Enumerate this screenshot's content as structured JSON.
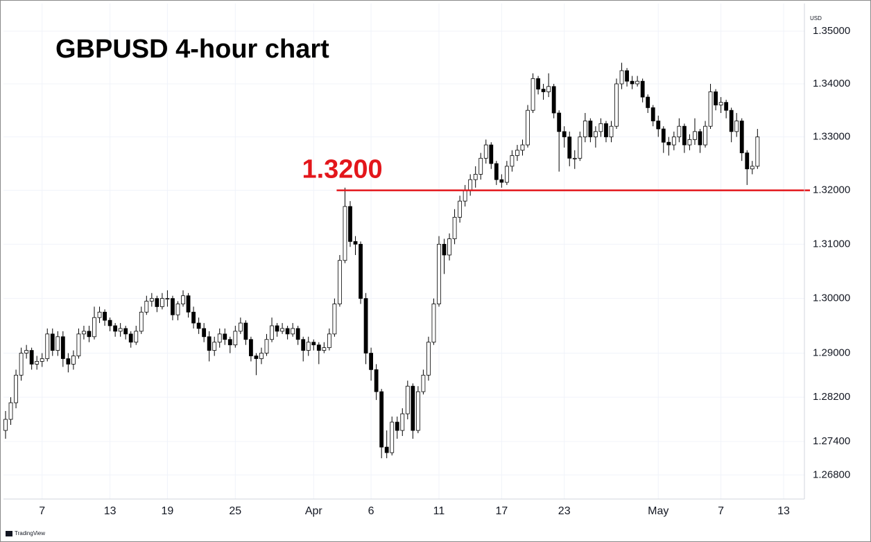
{
  "chart_data": {
    "type": "candlestick",
    "title": "GBPUSD 4-hour chart",
    "currency": "USD",
    "footer": "TradingView",
    "log_scale": true,
    "grid": true,
    "up_color": "#ffffff",
    "down_color": "#000000",
    "wick_color": "#000000",
    "ylim": [
      1.2637,
      1.3553
    ],
    "yticks": [
      {
        "value": 1.35,
        "label": "1.35000"
      },
      {
        "value": 1.34,
        "label": "1.34000"
      },
      {
        "value": 1.33,
        "label": "1.33000"
      },
      {
        "value": 1.32,
        "label": "1.32000"
      },
      {
        "value": 1.31,
        "label": "1.31000"
      },
      {
        "value": 1.3,
        "label": "1.30000"
      },
      {
        "value": 1.29,
        "label": "1.29000"
      },
      {
        "value": 1.282,
        "label": "1.28200"
      },
      {
        "value": 1.274,
        "label": "1.27400"
      },
      {
        "value": 1.268,
        "label": "1.26800"
      }
    ],
    "annotations": [
      {
        "text": "1.3200",
        "value": 1.32,
        "color": "#e3161b"
      }
    ],
    "categories": [
      null,
      null,
      null,
      null,
      null,
      null,
      null,
      "7",
      null,
      null,
      null,
      null,
      null,
      null,
      null,
      null,
      null,
      null,
      null,
      null,
      "13",
      null,
      null,
      null,
      null,
      null,
      null,
      null,
      null,
      null,
      null,
      "19",
      null,
      null,
      null,
      null,
      null,
      null,
      null,
      null,
      null,
      null,
      null,
      null,
      "25",
      null,
      null,
      null,
      null,
      null,
      null,
      null,
      null,
      null,
      null,
      null,
      null,
      null,
      null,
      "Apr",
      null,
      null,
      null,
      null,
      null,
      null,
      null,
      null,
      null,
      null,
      "6",
      null,
      null,
      null,
      null,
      null,
      null,
      null,
      null,
      null,
      null,
      null,
      null,
      "11",
      null,
      null,
      null,
      null,
      null,
      null,
      null,
      null,
      null,
      null,
      null,
      "17",
      null,
      null,
      null,
      null,
      null,
      null,
      null,
      null,
      null,
      null,
      null,
      "23",
      null,
      null,
      null,
      null,
      null,
      null,
      null,
      null,
      null,
      null,
      null,
      null,
      null,
      null,
      null,
      null,
      null,
      "May",
      null,
      null,
      null,
      null,
      null,
      null,
      null,
      null,
      null,
      null,
      null,
      "7",
      null,
      null,
      null,
      null,
      null,
      null,
      null,
      null,
      null,
      null,
      null,
      "13"
    ],
    "ohlc": [
      [
        1.276,
        1.2795,
        1.2745,
        1.278
      ],
      [
        1.278,
        1.282,
        1.277,
        1.281
      ],
      [
        1.281,
        1.287,
        1.28,
        1.286
      ],
      [
        1.286,
        1.291,
        1.285,
        1.29
      ],
      [
        1.29,
        1.2915,
        1.289,
        1.2905
      ],
      [
        1.2905,
        1.291,
        1.287,
        1.288
      ],
      [
        1.288,
        1.2895,
        1.287,
        1.2885
      ],
      [
        1.2885,
        1.29,
        1.2875,
        1.289
      ],
      [
        1.289,
        1.2945,
        1.2885,
        1.2935
      ],
      [
        1.2935,
        1.2945,
        1.2895,
        1.2905
      ],
      [
        1.2905,
        1.294,
        1.2895,
        1.293
      ],
      [
        1.293,
        1.294,
        1.2875,
        1.289
      ],
      [
        1.289,
        1.29,
        1.2865,
        1.288
      ],
      [
        1.288,
        1.2905,
        1.287,
        1.2895
      ],
      [
        1.2895,
        1.2945,
        1.289,
        1.2935
      ],
      [
        1.2935,
        1.295,
        1.2925,
        1.294
      ],
      [
        1.294,
        1.295,
        1.292,
        1.293
      ],
      [
        1.293,
        1.2985,
        1.2925,
        1.2965
      ],
      [
        1.2965,
        1.2985,
        1.2955,
        1.2975
      ],
      [
        1.2975,
        1.298,
        1.295,
        1.296
      ],
      [
        1.296,
        1.2965,
        1.294,
        1.295
      ],
      [
        1.295,
        1.2955,
        1.293,
        1.294
      ],
      [
        1.294,
        1.2955,
        1.293,
        1.2945
      ],
      [
        1.2945,
        1.295,
        1.2925,
        1.2935
      ],
      [
        1.2935,
        1.294,
        1.291,
        1.292
      ],
      [
        1.292,
        1.295,
        1.2915,
        1.294
      ],
      [
        1.294,
        1.2985,
        1.2935,
        1.2975
      ],
      [
        1.2975,
        1.3005,
        1.297,
        1.2995
      ],
      [
        1.2995,
        1.301,
        1.2985,
        1.3
      ],
      [
        1.3,
        1.3005,
        1.2975,
        1.2985
      ],
      [
        1.2985,
        1.301,
        1.298,
        1.3
      ],
      [
        1.3,
        1.3015,
        1.2985,
        1.3
      ],
      [
        1.3,
        1.3005,
        1.296,
        1.297
      ],
      [
        1.297,
        1.2995,
        1.296,
        1.299
      ],
      [
        1.299,
        1.3015,
        1.2985,
        1.3005
      ],
      [
        1.3005,
        1.301,
        1.2965,
        1.2975
      ],
      [
        1.2975,
        1.2985,
        1.2945,
        1.2955
      ],
      [
        1.2955,
        1.2965,
        1.2935,
        1.2945
      ],
      [
        1.2945,
        1.2955,
        1.292,
        1.293
      ],
      [
        1.293,
        1.294,
        1.2885,
        1.2905
      ],
      [
        1.2905,
        1.293,
        1.2895,
        1.292
      ],
      [
        1.292,
        1.2945,
        1.291,
        1.2935
      ],
      [
        1.2935,
        1.2945,
        1.2915,
        1.2925
      ],
      [
        1.2925,
        1.293,
        1.29,
        1.2915
      ],
      [
        1.2915,
        1.295,
        1.291,
        1.294
      ],
      [
        1.294,
        1.2965,
        1.2935,
        1.2955
      ],
      [
        1.2955,
        1.296,
        1.2915,
        1.2925
      ],
      [
        1.2925,
        1.293,
        1.2885,
        1.2895
      ],
      [
        1.2895,
        1.29,
        1.286,
        1.289
      ],
      [
        1.289,
        1.291,
        1.288,
        1.29
      ],
      [
        1.29,
        1.2935,
        1.2895,
        1.2925
      ],
      [
        1.2925,
        1.2965,
        1.292,
        1.295
      ],
      [
        1.295,
        1.2955,
        1.293,
        1.294
      ],
      [
        1.294,
        1.2955,
        1.2935,
        1.2945
      ],
      [
        1.2945,
        1.295,
        1.2925,
        1.2935
      ],
      [
        1.2935,
        1.2955,
        1.293,
        1.2945
      ],
      [
        1.2945,
        1.295,
        1.2915,
        1.2925
      ],
      [
        1.2925,
        1.293,
        1.2885,
        1.2905
      ],
      [
        1.2905,
        1.293,
        1.2895,
        1.292
      ],
      [
        1.292,
        1.2925,
        1.2905,
        1.2915
      ],
      [
        1.2915,
        1.292,
        1.288,
        1.2905
      ],
      [
        1.2905,
        1.292,
        1.29,
        1.291
      ],
      [
        1.291,
        1.2945,
        1.2905,
        1.2935
      ],
      [
        1.2935,
        1.3,
        1.293,
        1.299
      ],
      [
        1.299,
        1.308,
        1.2985,
        1.307
      ],
      [
        1.307,
        1.3205,
        1.3065,
        1.317
      ],
      [
        1.317,
        1.318,
        1.3095,
        1.3105
      ],
      [
        1.3105,
        1.3115,
        1.308,
        1.31
      ],
      [
        1.31,
        1.3105,
        1.299,
        1.3
      ],
      [
        1.3,
        1.301,
        1.288,
        1.29
      ],
      [
        1.29,
        1.291,
        1.285,
        1.287
      ],
      [
        1.287,
        1.288,
        1.2815,
        1.283
      ],
      [
        1.283,
        1.2835,
        1.271,
        1.273
      ],
      [
        1.273,
        1.276,
        1.271,
        1.272
      ],
      [
        1.272,
        1.2785,
        1.2715,
        1.2775
      ],
      [
        1.2775,
        1.2785,
        1.2745,
        1.276
      ],
      [
        1.276,
        1.28,
        1.275,
        1.279
      ],
      [
        1.279,
        1.285,
        1.278,
        1.284
      ],
      [
        1.284,
        1.2845,
        1.2745,
        1.276
      ],
      [
        1.276,
        1.284,
        1.2755,
        1.283
      ],
      [
        1.283,
        1.287,
        1.2825,
        1.286
      ],
      [
        1.286,
        1.293,
        1.285,
        1.292
      ],
      [
        1.292,
        1.3,
        1.2915,
        1.299
      ],
      [
        1.299,
        1.3115,
        1.2985,
        1.31
      ],
      [
        1.31,
        1.311,
        1.3045,
        1.308
      ],
      [
        1.308,
        1.312,
        1.307,
        1.311
      ],
      [
        1.311,
        1.3165,
        1.31,
        1.315
      ],
      [
        1.315,
        1.319,
        1.314,
        1.318
      ],
      [
        1.318,
        1.321,
        1.317,
        1.32
      ],
      [
        1.32,
        1.323,
        1.319,
        1.322
      ],
      [
        1.322,
        1.3245,
        1.3205,
        1.323
      ],
      [
        1.323,
        1.327,
        1.322,
        1.326
      ],
      [
        1.326,
        1.3295,
        1.325,
        1.3285
      ],
      [
        1.3285,
        1.329,
        1.324,
        1.325
      ],
      [
        1.325,
        1.3255,
        1.321,
        1.322
      ],
      [
        1.322,
        1.323,
        1.3205,
        1.3215
      ],
      [
        1.3215,
        1.3255,
        1.321,
        1.3245
      ],
      [
        1.3245,
        1.3275,
        1.3235,
        1.3265
      ],
      [
        1.3265,
        1.3285,
        1.3255,
        1.3275
      ],
      [
        1.3275,
        1.3295,
        1.3265,
        1.3285
      ],
      [
        1.3285,
        1.336,
        1.328,
        1.335
      ],
      [
        1.335,
        1.342,
        1.3345,
        1.341
      ],
      [
        1.341,
        1.3415,
        1.338,
        1.339
      ],
      [
        1.339,
        1.34,
        1.337,
        1.3385
      ],
      [
        1.3385,
        1.342,
        1.3375,
        1.3395
      ],
      [
        1.3395,
        1.34,
        1.3335,
        1.3345
      ],
      [
        1.3345,
        1.335,
        1.3235,
        1.331
      ],
      [
        1.331,
        1.332,
        1.328,
        1.33
      ],
      [
        1.33,
        1.331,
        1.3245,
        1.326
      ],
      [
        1.326,
        1.3275,
        1.324,
        1.326
      ],
      [
        1.326,
        1.331,
        1.3255,
        1.33
      ],
      [
        1.33,
        1.3345,
        1.329,
        1.333
      ],
      [
        1.333,
        1.3335,
        1.329,
        1.33
      ],
      [
        1.33,
        1.332,
        1.328,
        1.331
      ],
      [
        1.331,
        1.3335,
        1.33,
        1.3325
      ],
      [
        1.3325,
        1.333,
        1.329,
        1.33
      ],
      [
        1.33,
        1.333,
        1.329,
        1.332
      ],
      [
        1.332,
        1.341,
        1.3315,
        1.34
      ],
      [
        1.34,
        1.344,
        1.339,
        1.3425
      ],
      [
        1.3425,
        1.343,
        1.3395,
        1.3405
      ],
      [
        1.3405,
        1.3415,
        1.339,
        1.34
      ],
      [
        1.34,
        1.3415,
        1.3395,
        1.3405
      ],
      [
        1.3405,
        1.341,
        1.3365,
        1.3375
      ],
      [
        1.3375,
        1.338,
        1.3345,
        1.3355
      ],
      [
        1.3355,
        1.336,
        1.332,
        1.333
      ],
      [
        1.333,
        1.334,
        1.33,
        1.3315
      ],
      [
        1.3315,
        1.332,
        1.327,
        1.329
      ],
      [
        1.329,
        1.33,
        1.3265,
        1.3285
      ],
      [
        1.3285,
        1.331,
        1.3275,
        1.33
      ],
      [
        1.33,
        1.3335,
        1.329,
        1.332
      ],
      [
        1.332,
        1.3325,
        1.327,
        1.3285
      ],
      [
        1.3285,
        1.3305,
        1.3275,
        1.3295
      ],
      [
        1.3295,
        1.3335,
        1.3285,
        1.331
      ],
      [
        1.331,
        1.3315,
        1.327,
        1.3285
      ],
      [
        1.3285,
        1.333,
        1.328,
        1.332
      ],
      [
        1.332,
        1.34,
        1.3315,
        1.3385
      ],
      [
        1.3385,
        1.339,
        1.335,
        1.336
      ],
      [
        1.336,
        1.3375,
        1.3345,
        1.3365
      ],
      [
        1.3365,
        1.337,
        1.3335,
        1.335
      ],
      [
        1.335,
        1.3355,
        1.329,
        1.331
      ],
      [
        1.331,
        1.3345,
        1.33,
        1.333
      ],
      [
        1.333,
        1.3335,
        1.3255,
        1.327
      ],
      [
        1.327,
        1.3275,
        1.321,
        1.324
      ],
      [
        1.324,
        1.3255,
        1.323,
        1.3245
      ],
      [
        1.3245,
        1.3315,
        1.324,
        1.33
      ],
      null,
      null,
      null,
      null,
      null
    ]
  }
}
